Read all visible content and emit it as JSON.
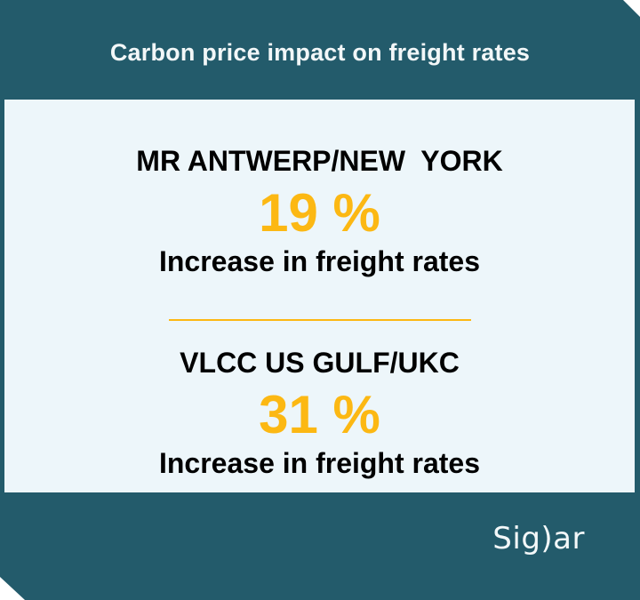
{
  "title": "Carbon price impact on freight rates",
  "colors": {
    "background": "#235B6B",
    "card_background": "#EDF6FA",
    "accent_amber": "#FCB813",
    "body_text": "#000000",
    "title_text": "#F2F7F8"
  },
  "sections": [
    {
      "route": "MR ANTWERP/NEW  YORK",
      "value": "19 %",
      "caption": "Increase in freight rates"
    },
    {
      "route": "VLCC US GULF/UKC",
      "value": "31 %",
      "caption": "Increase in freight rates"
    }
  ],
  "footer": {
    "brand": "Sig)ar"
  }
}
